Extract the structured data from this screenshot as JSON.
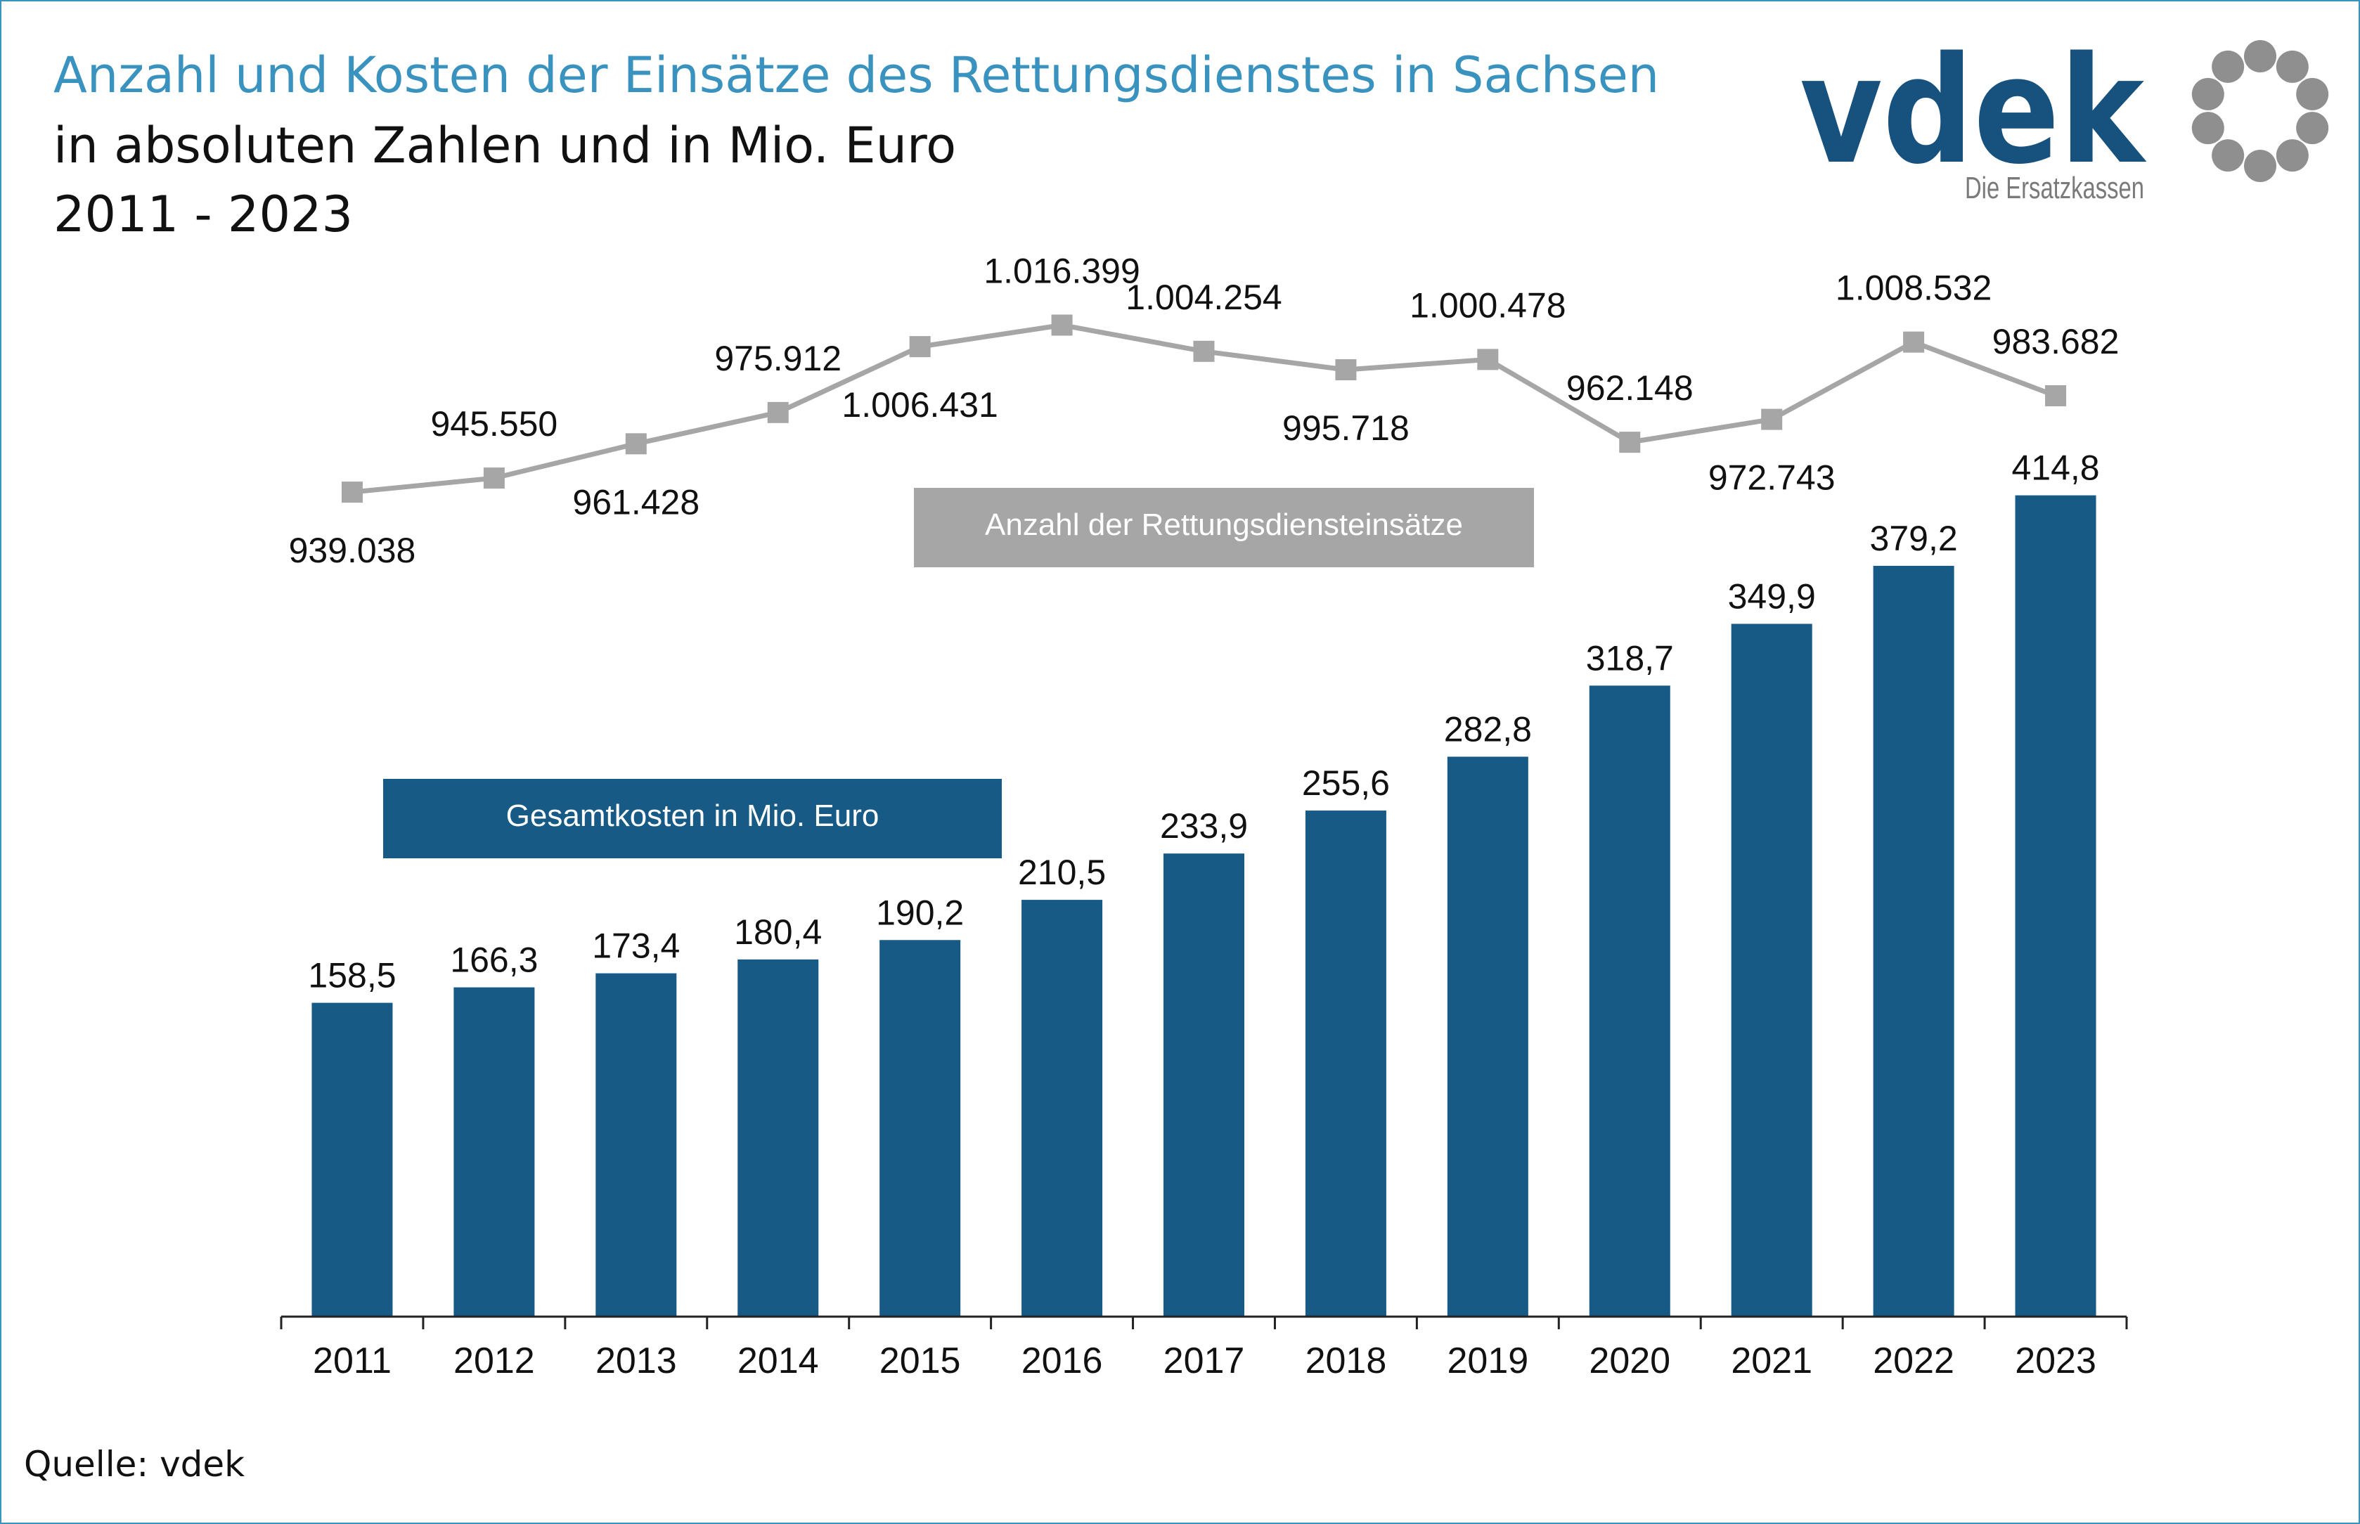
{
  "header": {
    "title": "Anzahl und Kosten der Einsätze des Rettungsdienstes in Sachsen",
    "subtitle": "in absoluten Zahlen und in Mio. Euro",
    "period": "2011 - 2023"
  },
  "logo": {
    "wordmark": "vdek",
    "tagline": "Die Ersatzkassen",
    "icon": "ring-of-dots-icon",
    "colors": {
      "wordmark": "#17527f",
      "tagline": "#7a7a7a",
      "dots": "#8f8f8f"
    }
  },
  "footer": {
    "source": "Quelle: vdek"
  },
  "colors": {
    "bars": "#185a86",
    "line": "#a6a6a6",
    "frame": "#3a93bf",
    "title": "#3a93bf"
  },
  "chart_data": {
    "type": "bar",
    "categories": [
      "2011",
      "2012",
      "2013",
      "2014",
      "2015",
      "2016",
      "2017",
      "2018",
      "2019",
      "2020",
      "2021",
      "2022",
      "2023"
    ],
    "series": [
      {
        "name": "Gesamtkosten in Mio. Euro",
        "type": "bar",
        "values": [
          158.5,
          166.3,
          173.4,
          180.4,
          190.2,
          210.5,
          233.9,
          255.6,
          282.8,
          318.7,
          349.9,
          379.2,
          414.8
        ],
        "labels": [
          "158,5",
          "166,3",
          "173,4",
          "180,4",
          "190,2",
          "210,5",
          "233,9",
          "255,6",
          "282,8",
          "318,7",
          "349,9",
          "379,2",
          "414,8"
        ]
      },
      {
        "name": "Anzahl der Rettungsdiensteinsätze",
        "type": "line",
        "values": [
          939038,
          945550,
          961428,
          975912,
          1006431,
          1016399,
          1004254,
          995718,
          1000478,
          962148,
          972743,
          1008532,
          983682
        ],
        "labels": [
          "939.038",
          "945.550",
          "961.428",
          "975.912",
          "1.006.431",
          "1.016.399",
          "1.004.254",
          "995.718",
          "1.000.478",
          "962.148",
          "972.743",
          "1.008.532",
          "983.682"
        ],
        "label_position": [
          "below",
          "above",
          "below",
          "above",
          "below",
          "above",
          "above",
          "below",
          "above",
          "above",
          "below",
          "above",
          "above"
        ]
      }
    ],
    "xlabel": "",
    "ylabel": "",
    "bar_ylim": [
      0,
      420
    ],
    "line_ylim": [
      900000,
      1040000
    ],
    "grid": false,
    "legend": "inline boxes"
  }
}
